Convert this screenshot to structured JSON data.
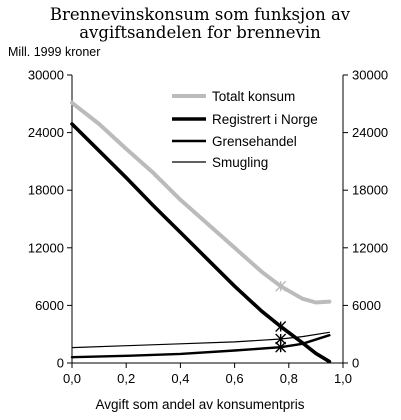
{
  "chart_data": {
    "type": "line",
    "title_lines": [
      "Brennevinskonsum som funksjon av",
      "avgiftsandelen for brennevin"
    ],
    "unit_label": "Mill. 1999 kroner",
    "xlabel": "Avgift som andel av konsumentpris",
    "xlim": [
      0.0,
      1.0
    ],
    "ylim": [
      0,
      30000
    ],
    "x_ticks": [
      "0,0",
      "0,2",
      "0,4",
      "0,6",
      "0,8",
      "1,0"
    ],
    "y_ticks": [
      "0",
      "6000",
      "12000",
      "18000",
      "24000",
      "30000"
    ],
    "y_ticks_right": [
      "0",
      "6000",
      "12000",
      "18000",
      "24000",
      "30000"
    ],
    "grid": false,
    "legend_position": "top-right",
    "series": [
      {
        "name": "Totalt konsum",
        "color": "#bbbbbb",
        "x": [
          0.0,
          0.1,
          0.2,
          0.3,
          0.4,
          0.5,
          0.6,
          0.7,
          0.77,
          0.85,
          0.9,
          0.95
        ],
        "y": [
          27100,
          24900,
          22300,
          19800,
          17000,
          14500,
          12000,
          9500,
          8000,
          6700,
          6300,
          6400
        ]
      },
      {
        "name": "Registrert i Norge",
        "color": "#000000",
        "x": [
          0.0,
          0.1,
          0.2,
          0.3,
          0.4,
          0.5,
          0.6,
          0.7,
          0.77,
          0.85,
          0.9,
          0.95
        ],
        "y": [
          24900,
          22100,
          19300,
          16400,
          13600,
          10800,
          8000,
          5400,
          3800,
          2100,
          1000,
          150
        ]
      },
      {
        "name": "Grensehandel",
        "color": "#000000",
        "x": [
          0.0,
          0.2,
          0.4,
          0.6,
          0.77,
          0.85,
          0.95
        ],
        "y": [
          600,
          750,
          950,
          1300,
          1650,
          2000,
          2900
        ]
      },
      {
        "name": "Smugling",
        "color": "#000000",
        "x": [
          0.0,
          0.2,
          0.4,
          0.6,
          0.77,
          0.85,
          0.95
        ],
        "y": [
          1600,
          1800,
          2000,
          2200,
          2500,
          2750,
          3200
        ]
      }
    ],
    "markers": [
      {
        "series": "Totalt konsum",
        "x": 0.77,
        "y": 8000
      },
      {
        "series": "Registrert i Norge",
        "x": 0.77,
        "y": 3800
      },
      {
        "series": "Smugling",
        "x": 0.77,
        "y": 2500
      },
      {
        "series": "Grensehandel",
        "x": 0.77,
        "y": 1650
      }
    ]
  }
}
